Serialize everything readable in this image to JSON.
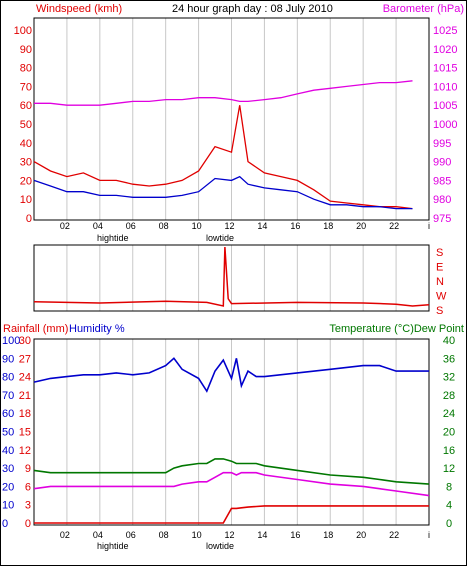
{
  "page": {
    "title": "24 hour graph day : 08 July 2010"
  },
  "colors": {
    "red": "#e00000",
    "blue": "#0000cc",
    "magenta": "#e000e0",
    "green": "#007700",
    "grid": "#c8c8c8"
  },
  "tide": {
    "high": "hightide",
    "low": "lowtide"
  },
  "chart_data": [
    {
      "type": "line",
      "title": "24 hour graph day : 08 July 2010",
      "x_hours": [
        0,
        1,
        2,
        3,
        4,
        5,
        6,
        7,
        8,
        9,
        10,
        11,
        12,
        12.5,
        13,
        14,
        15,
        16,
        17,
        18,
        19,
        20,
        21,
        22,
        23
      ],
      "x_tick_labels": [
        "02",
        "04",
        "06",
        "08",
        "10",
        "12",
        "14",
        "16",
        "18",
        "20",
        "22",
        "i"
      ],
      "y_left": {
        "label": "Windspeed (kmh)",
        "range": [
          0,
          100
        ],
        "ticks": [
          "0",
          "10",
          "20",
          "30",
          "40",
          "50",
          "60",
          "70",
          "80",
          "90",
          "100"
        ]
      },
      "y_right": {
        "label": "Barometer (hPa)",
        "range": [
          975,
          1025
        ],
        "ticks": [
          "975",
          "980",
          "985",
          "990",
          "995",
          "1000",
          "1005",
          "1010",
          "1015",
          "1020",
          "1025"
        ]
      },
      "series": [
        {
          "name": "Windspeed (kmh)",
          "axis": "left",
          "color": "#e00000",
          "values": [
            30,
            25,
            22,
            24,
            20,
            20,
            18,
            17,
            18,
            20,
            25,
            38,
            35,
            60,
            30,
            24,
            22,
            20,
            15,
            9,
            8,
            7,
            6,
            6,
            5
          ]
        },
        {
          "name": "Barometer (hPa)",
          "axis": "right",
          "color": "#e000e0",
          "values": [
            1005.5,
            1005.5,
            1005,
            1005,
            1005,
            1005.5,
            1006,
            1006,
            1006.5,
            1006.5,
            1007,
            1007,
            1006.5,
            1006,
            1006,
            1006.5,
            1007,
            1008,
            1009,
            1009.5,
            1010,
            1010.5,
            1011,
            1011,
            1011.5
          ]
        },
        {
          "color": "#0000cc",
          "axis": "left",
          "values": [
            20,
            17,
            14,
            14,
            12,
            12,
            11,
            11,
            11,
            12,
            14,
            21,
            20,
            22,
            18,
            16,
            15,
            14,
            10,
            7,
            7,
            6,
            6,
            5,
            5
          ]
        }
      ]
    },
    {
      "type": "line",
      "x_hours": [
        0,
        4,
        8,
        10.5,
        11.5,
        11.6,
        11.8,
        12,
        16,
        20,
        22,
        23,
        24
      ],
      "y_right": {
        "ticks": [
          "S",
          "E",
          "N",
          "W",
          "S"
        ]
      },
      "series": [
        {
          "color": "#e00000",
          "values_deg": [
            185,
            183,
            186,
            184,
            178,
            360,
            190,
            182,
            184,
            183,
            181,
            178,
            180
          ]
        }
      ]
    },
    {
      "type": "line",
      "x_hours": [
        0,
        1,
        2,
        3,
        4,
        5,
        6,
        7,
        8,
        8.5,
        9,
        10,
        10.5,
        11,
        11.5,
        12,
        12.3,
        12.6,
        13,
        13.5,
        14,
        16,
        18,
        20,
        21,
        22,
        24
      ],
      "y_left_rain": {
        "label": "Rainfall (mm)",
        "range": [
          0,
          30
        ],
        "ticks": [
          "0",
          "3",
          "6",
          "9",
          "12",
          "15",
          "18",
          "21",
          "24",
          "27",
          "30"
        ]
      },
      "y_left_humidity": {
        "label": "Humidity %",
        "range": [
          0,
          100
        ],
        "ticks": [
          "0",
          "10",
          "20",
          "30",
          "40",
          "50",
          "60",
          "70",
          "80",
          "90",
          "100"
        ]
      },
      "y_right": {
        "label": "Temperature (°C)Dew Point",
        "range": [
          0,
          40
        ],
        "ticks": [
          "0",
          "4",
          "8",
          "12",
          "16",
          "20",
          "24",
          "28",
          "32",
          "36",
          "40"
        ]
      },
      "series": [
        {
          "name": "Rainfall (mm)",
          "axis": "rain",
          "color": "#e00000",
          "values": [
            0,
            0,
            0,
            0,
            0,
            0,
            0,
            0,
            0,
            0,
            0,
            0,
            0,
            0,
            0,
            2.4,
            2.4,
            2.5,
            2.6,
            2.7,
            2.8,
            2.8,
            2.8,
            2.8,
            2.8,
            2.8,
            2.8
          ]
        },
        {
          "name": "Humidity %",
          "axis": "humidity",
          "color": "#0000cc",
          "values": [
            77,
            79,
            80,
            81,
            81,
            82,
            81,
            82,
            86,
            90,
            84,
            79,
            72,
            83,
            89,
            79,
            90,
            75,
            83,
            80,
            80,
            82,
            84,
            86,
            86,
            83,
            83
          ]
        },
        {
          "name": "Temperature (°C)",
          "axis": "right",
          "color": "#007700",
          "values": [
            11.5,
            11,
            11,
            11,
            11,
            11,
            11,
            11,
            11,
            12,
            12.5,
            13,
            13,
            14,
            14,
            13.5,
            13,
            13,
            13,
            13,
            12.5,
            11.5,
            10.5,
            10,
            9.5,
            9,
            8.5
          ]
        },
        {
          "name": "Dew Point",
          "axis": "right",
          "color": "#e000e0",
          "values": [
            7.5,
            8,
            8,
            8,
            8,
            8,
            8,
            8,
            8,
            8,
            8.5,
            9,
            9,
            10,
            11,
            11,
            10.5,
            11,
            11,
            11,
            10.5,
            9.5,
            8.5,
            8,
            7.5,
            7,
            6
          ]
        }
      ]
    }
  ]
}
